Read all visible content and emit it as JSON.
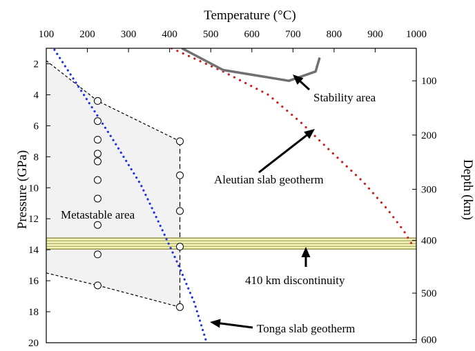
{
  "chart_data": {
    "type": "scatter",
    "xlabel": "Temperature (°C)",
    "ylabel": "Pressure (GPa)",
    "y2label": "Depth (km)",
    "xlim": [
      100,
      1000
    ],
    "ylim": [
      20,
      1
    ],
    "y_inverted": true,
    "x_ticks": [
      100,
      200,
      300,
      400,
      500,
      600,
      700,
      800,
      900,
      1000
    ],
    "y_ticks": [
      2,
      4,
      6,
      8,
      10,
      12,
      14,
      16,
      18,
      20
    ],
    "depth_ticks": [
      100,
      200,
      300,
      400,
      500,
      600
    ],
    "depth_to_pressure": [
      [
        100,
        3.1
      ],
      [
        200,
        6.6
      ],
      [
        300,
        10.1
      ],
      [
        400,
        13.4
      ],
      [
        500,
        16.8
      ],
      [
        600,
        19.8
      ]
    ],
    "grid": false,
    "experiments": [
      {
        "temperature": 225,
        "pressure": 4.4
      },
      {
        "temperature": 225,
        "pressure": 5.7
      },
      {
        "temperature": 225,
        "pressure": 6.9
      },
      {
        "temperature": 225,
        "pressure": 7.8
      },
      {
        "temperature": 225,
        "pressure": 8.3
      },
      {
        "temperature": 225,
        "pressure": 9.5
      },
      {
        "temperature": 225,
        "pressure": 10.7
      },
      {
        "temperature": 225,
        "pressure": 12.4
      },
      {
        "temperature": 225,
        "pressure": 14.3
      },
      {
        "temperature": 225,
        "pressure": 16.3
      },
      {
        "temperature": 425,
        "pressure": 7.0
      },
      {
        "temperature": 425,
        "pressure": 9.2
      },
      {
        "temperature": 425,
        "pressure": 11.5
      },
      {
        "temperature": 425,
        "pressure": 13.8
      },
      {
        "temperature": 425,
        "pressure": 17.7
      }
    ],
    "metastable_region": [
      [
        100,
        1.8
      ],
      [
        225,
        4.4
      ],
      [
        425,
        7.0
      ],
      [
        425,
        17.7
      ],
      [
        225,
        16.3
      ],
      [
        100,
        15.5
      ]
    ],
    "aleutian_geotherm": [
      [
        405,
        1
      ],
      [
        530,
        2.5
      ],
      [
        640,
        4.0
      ],
      [
        720,
        5.8
      ],
      [
        790,
        7.6
      ],
      [
        870,
        9.6
      ],
      [
        930,
        11.4
      ],
      [
        970,
        12.8
      ],
      [
        995,
        13.9
      ]
    ],
    "tonga_geotherm": [
      [
        120,
        1.1
      ],
      [
        260,
        6.8
      ],
      [
        330,
        9.8
      ],
      [
        380,
        12.6
      ],
      [
        420,
        14.9
      ],
      [
        460,
        17.4
      ],
      [
        490,
        20
      ]
    ],
    "stability_boundary": [
      [
        430,
        1
      ],
      [
        530,
        2.4
      ],
      [
        690,
        3.1
      ],
      [
        755,
        2.5
      ],
      [
        765,
        1.6
      ]
    ],
    "discontinuity_410_pressure": 13.6,
    "colors": {
      "aleutian": "#cc1f1f",
      "tonga": "#2233dd",
      "stability": "#707070",
      "metastable_fill": "#f2f2f2",
      "discontinuity_fill": "#f4f4b8",
      "discontinuity_line": "#8a8a40"
    },
    "annotations": {
      "stability": "Stability area",
      "aleutian": "Aleutian slab geotherm",
      "metastable": "Metastable area",
      "discontinuity": "410 km discontinuity",
      "tonga": "Tonga slab geotherm"
    }
  }
}
